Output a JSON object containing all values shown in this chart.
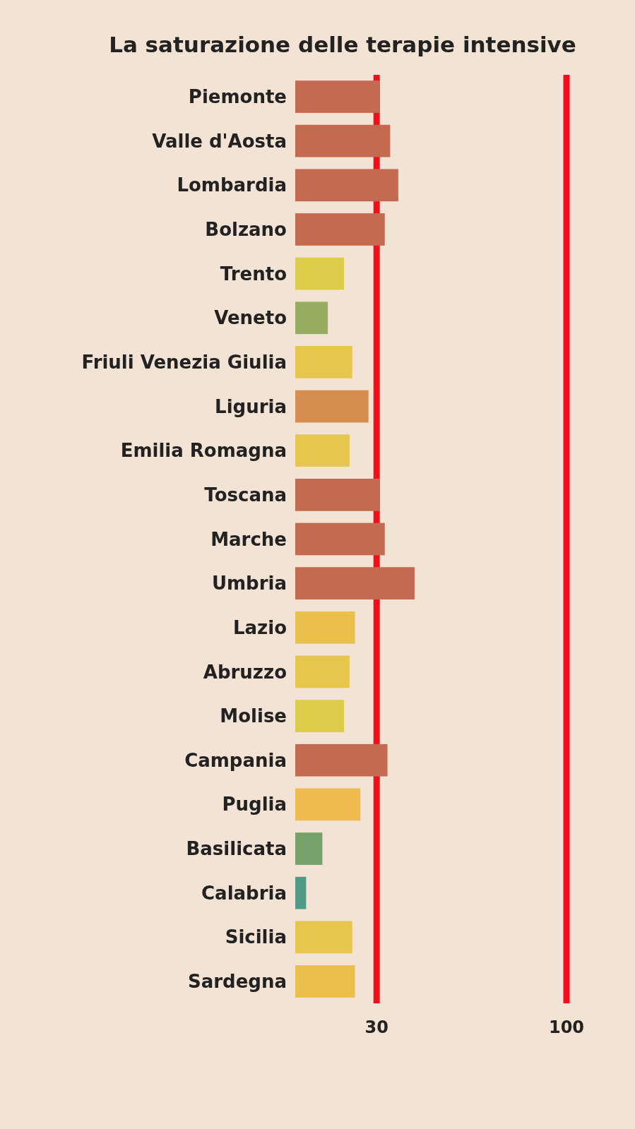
{
  "chart_data": {
    "type": "bar",
    "orientation": "horizontal",
    "title": "La saturazione delle terapie intensive",
    "categories": [
      "Piemonte",
      "Valle d'Aosta",
      "Lombardia",
      "Bolzano",
      "Trento",
      "Veneto",
      "Friuli Venezia Giulia",
      "Liguria",
      "Emilia Romagna",
      "Toscana",
      "Marche",
      "Umbria",
      "Lazio",
      "Abruzzo",
      "Molise",
      "Campania",
      "Puglia",
      "Basilicata",
      "Calabria",
      "Sicilia",
      "Sardegna"
    ],
    "values": [
      31,
      35,
      38,
      33,
      18,
      12,
      21,
      27,
      20,
      31,
      33,
      44,
      22,
      20,
      18,
      34,
      24,
      10,
      4,
      21,
      22
    ],
    "colors": [
      "#c46a50",
      "#c46a50",
      "#c46a50",
      "#c46a50",
      "#dccc4a",
      "#94ad5e",
      "#e6c64c",
      "#d68d50",
      "#e6c64c",
      "#c46a50",
      "#c46a50",
      "#c46a50",
      "#ebbf4b",
      "#e6c64c",
      "#dccc4a",
      "#c46a50",
      "#f0bb4e",
      "#74a26a",
      "#4f9b85",
      "#e6c64c",
      "#ebbf4b"
    ],
    "xlim": [
      0,
      100
    ],
    "xticks": [
      30,
      100
    ],
    "ref_lines": [
      {
        "axis": "x",
        "value": 30,
        "color": "#f70d1a"
      },
      {
        "axis": "x",
        "value": 100,
        "color": "#f70d1a"
      }
    ],
    "tick_labels": "x"
  }
}
